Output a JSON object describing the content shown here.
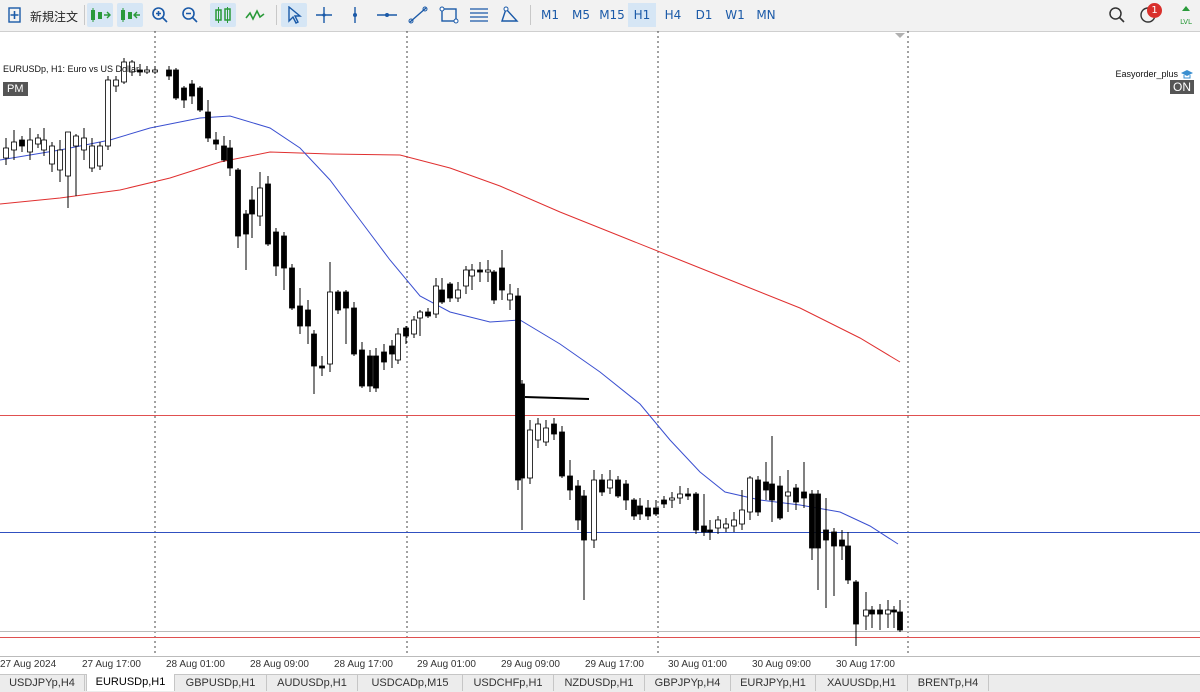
{
  "toolbar": {
    "new_order_label": "新規注文",
    "timeframes": [
      "M1",
      "M5",
      "M15",
      "H1",
      "H4",
      "D1",
      "W1",
      "MN"
    ],
    "active_timeframe": "H1",
    "notification_count": "1",
    "icons": [
      "new-order-icon",
      "buy-sell-left-icon",
      "buy-sell-right-icon",
      "zoom-in-icon",
      "zoom-out-icon",
      "candles-icon",
      "line-chart-icon",
      "cursor-icon",
      "crosshair-icon",
      "vertical-line-icon",
      "horizontal-line-icon",
      "trendline-icon",
      "rectangle-icon",
      "fibonacci-icon",
      "shapes-icon",
      "search-icon",
      "bell-icon",
      "lvl-icon"
    ]
  },
  "chart": {
    "title": "EURUSDp, H1:  Euro vs US Dollar",
    "session_badge": "PM",
    "ea_name": "Easyorder_plus",
    "ea_status": "ON",
    "time_labels": [
      "27 Aug 2024",
      "27 Aug 17:00",
      "28 Aug 01:00",
      "28 Aug 09:00",
      "28 Aug 17:00",
      "29 Aug 01:00",
      "29 Aug 09:00",
      "29 Aug 17:00",
      "30 Aug 01:00",
      "30 Aug 09:00",
      "30 Aug 17:00"
    ],
    "colors": {
      "fast_ma": "#3a4fd0",
      "slow_ma": "#e03030",
      "resistance_line": "#e05050",
      "support_line": "#3050c0",
      "candle_bull": "#ffffff",
      "candle_bear": "#000000"
    }
  },
  "tabs": {
    "items": [
      "USDJPYp,H4",
      "EURUSDp,H1",
      "GBPUSDp,H1",
      "AUDUSDp,H1",
      "USDCADp,M15",
      "USDCHFp,H1",
      "NZDUSDp,H1",
      "GBPJPYp,H4",
      "EURJPYp,H1",
      "XAUUSDp,H1",
      "BRENTp,H4"
    ],
    "active": "EURUSDp,H1"
  }
}
